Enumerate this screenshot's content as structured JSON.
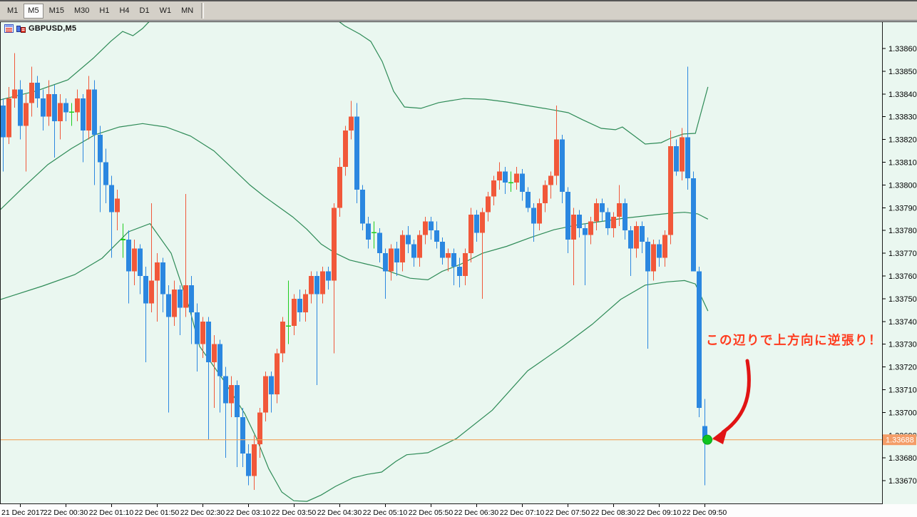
{
  "toolbar": {
    "buttons": [
      {
        "label": "M1",
        "active": false
      },
      {
        "label": "M5",
        "active": true
      },
      {
        "label": "M15",
        "active": false
      },
      {
        "label": "M30",
        "active": false
      },
      {
        "label": "H1",
        "active": false
      },
      {
        "label": "H4",
        "active": false
      },
      {
        "label": "D1",
        "active": false
      },
      {
        "label": "W1",
        "active": false
      },
      {
        "label": "MN",
        "active": false
      }
    ]
  },
  "chart": {
    "symbol_label": "GBPUSD,M5",
    "icons": [
      "chart-list-icon",
      "bar-chart-icon"
    ],
    "colors": {
      "background": "#eaf7f0",
      "toolbar_bg": "#d4d0c8",
      "frame": "#1c1c1c",
      "bull": "#f1583a",
      "bear": "#2b87e0",
      "doji": "#1ecc1e",
      "band": "#2e8b57",
      "hline": "#f0a35c",
      "tag_bg": "#f49d68",
      "tag_text": "#ffffff",
      "axis_text": "#000000",
      "bottom_strip": "#fdfdfd"
    },
    "price_axis": {
      "labels": [
        "1.33860",
        "1.33850",
        "1.33840",
        "1.33830",
        "1.33820",
        "1.33810",
        "1.33800",
        "1.33790",
        "1.33780",
        "1.33770",
        "1.33760",
        "1.33750",
        "1.33740",
        "1.33730",
        "1.33720",
        "1.33710",
        "1.33700",
        "1.33690",
        "1.33680",
        "1.33670"
      ],
      "top_unit": 860,
      "unit_step": 10,
      "current_price_label": "1.33688",
      "current_price_unit": 688
    },
    "time_axis": {
      "labels": [
        "21 Dec 2017",
        "22 Dec 00:30",
        "22 Dec 01:10",
        "22 Dec 01:50",
        "22 Dec 02:30",
        "22 Dec 03:10",
        "22 Dec 03:50",
        "22 Dec 04:30",
        "22 Dec 05:10",
        "22 Dec 05:50",
        "22 Dec 06:30",
        "22 Dec 07:10",
        "22 Dec 07:50",
        "22 Dec 08:30",
        "22 Dec 09:10",
        "22 Dec 09:50"
      ],
      "first_candle_index": 3,
      "candle_index_step": 8
    },
    "chart_data": {
      "type": "candlestick",
      "symbol": "GBPUSD",
      "timeframe": "M5",
      "price_base": 1.33,
      "unit": 1e-05,
      "note": "candles are [open,high,low,close] in 0.00001 units above 1.33; doji when open==close",
      "candles": [
        [
          835,
          838,
          806,
          821
        ],
        [
          821,
          843,
          818,
          838
        ],
        [
          838,
          858,
          834,
          842
        ],
        [
          842,
          846,
          820,
          826
        ],
        [
          826,
          840,
          806,
          836
        ],
        [
          836,
          852,
          830,
          845
        ],
        [
          845,
          848,
          834,
          838
        ],
        [
          838,
          842,
          824,
          830
        ],
        [
          830,
          846,
          826,
          840
        ],
        [
          840,
          844,
          812,
          828
        ],
        [
          828,
          840,
          820,
          836
        ],
        [
          836,
          838,
          828,
          832
        ],
        [
          832,
          836,
          826,
          832
        ],
        [
          832,
          842,
          828,
          838
        ],
        [
          838,
          840,
          810,
          824
        ],
        [
          824,
          848,
          820,
          842
        ],
        [
          842,
          846,
          800,
          822
        ],
        [
          822,
          826,
          788,
          810
        ],
        [
          810,
          816,
          792,
          800
        ],
        [
          800,
          804,
          768,
          788
        ],
        [
          788,
          798,
          780,
          794
        ],
        [
          776,
          783,
          768,
          776
        ],
        [
          776,
          780,
          748,
          762
        ],
        [
          762,
          776,
          756,
          772
        ],
        [
          772,
          774,
          752,
          760
        ],
        [
          760,
          764,
          722,
          748
        ],
        [
          748,
          792,
          744,
          758
        ],
        [
          758,
          770,
          740,
          766
        ],
        [
          766,
          768,
          744,
          752
        ],
        [
          752,
          756,
          700,
          742
        ],
        [
          742,
          758,
          738,
          754
        ],
        [
          754,
          756,
          734,
          746
        ],
        [
          746,
          796,
          742,
          756
        ],
        [
          756,
          760,
          730,
          744
        ],
        [
          744,
          748,
          718,
          730
        ],
        [
          730,
          742,
          724,
          740
        ],
        [
          740,
          742,
          688,
          722
        ],
        [
          722,
          734,
          702,
          730
        ],
        [
          730,
          732,
          700,
          716
        ],
        [
          716,
          720,
          680,
          704
        ],
        [
          704,
          716,
          698,
          712
        ],
        [
          712,
          714,
          676,
          698
        ],
        [
          698,
          702,
          676,
          682
        ],
        [
          682,
          686,
          668,
          672
        ],
        [
          672,
          690,
          666,
          686
        ],
        [
          686,
          702,
          680,
          700
        ],
        [
          700,
          718,
          696,
          716
        ],
        [
          716,
          718,
          700,
          708
        ],
        [
          708,
          728,
          704,
          726
        ],
        [
          726,
          742,
          722,
          740
        ],
        [
          738,
          758,
          730,
          738
        ],
        [
          738,
          752,
          734,
          750
        ],
        [
          750,
          754,
          740,
          744
        ],
        [
          744,
          754,
          740,
          752
        ],
        [
          752,
          762,
          748,
          760
        ],
        [
          760,
          762,
          712,
          752
        ],
        [
          752,
          764,
          748,
          762
        ],
        [
          762,
          764,
          754,
          758
        ],
        [
          758,
          792,
          726,
          790
        ],
        [
          790,
          812,
          786,
          808
        ],
        [
          808,
          826,
          804,
          824
        ],
        [
          824,
          837,
          820,
          830
        ],
        [
          830,
          836,
          792,
          798
        ],
        [
          798,
          800,
          780,
          783
        ],
        [
          783,
          786,
          772,
          776
        ],
        [
          779,
          784,
          772,
          779
        ],
        [
          779,
          781,
          766,
          770
        ],
        [
          770,
          772,
          750,
          762
        ],
        [
          762,
          774,
          758,
          772
        ],
        [
          772,
          775,
          760,
          766
        ],
        [
          766,
          780,
          762,
          778
        ],
        [
          778,
          782,
          770,
          774
        ],
        [
          774,
          776,
          764,
          768
        ],
        [
          768,
          780,
          764,
          778
        ],
        [
          778,
          786,
          774,
          784
        ],
        [
          784,
          786,
          776,
          780
        ],
        [
          780,
          784,
          772,
          775
        ],
        [
          775,
          777,
          765,
          768
        ],
        [
          768,
          772,
          762,
          770
        ],
        [
          770,
          772,
          756,
          764
        ],
        [
          764,
          768,
          755,
          760
        ],
        [
          760,
          772,
          756,
          770
        ],
        [
          770,
          790,
          766,
          787
        ],
        [
          787,
          789,
          775,
          779
        ],
        [
          779,
          790,
          750,
          788
        ],
        [
          788,
          797,
          784,
          795
        ],
        [
          795,
          804,
          791,
          802
        ],
        [
          802,
          810,
          798,
          806
        ],
        [
          806,
          808,
          796,
          801
        ],
        [
          801,
          806,
          797,
          801
        ],
        [
          801,
          808,
          798,
          805
        ],
        [
          805,
          807,
          793,
          797
        ],
        [
          797,
          799,
          788,
          790
        ],
        [
          790,
          792,
          775,
          783
        ],
        [
          783,
          794,
          780,
          792
        ],
        [
          792,
          802,
          788,
          800
        ],
        [
          800,
          806,
          794,
          804
        ],
        [
          804,
          835,
          800,
          820
        ],
        [
          820,
          822,
          792,
          797
        ],
        [
          797,
          799,
          770,
          776
        ],
        [
          776,
          790,
          756,
          787
        ],
        [
          787,
          789,
          777,
          781
        ],
        [
          781,
          783,
          756,
          778
        ],
        [
          778,
          786,
          774,
          784
        ],
        [
          784,
          794,
          780,
          792
        ],
        [
          792,
          794,
          784,
          788
        ],
        [
          788,
          790,
          778,
          781
        ],
        [
          781,
          788,
          777,
          786
        ],
        [
          786,
          800,
          782,
          792
        ],
        [
          792,
          794,
          776,
          780
        ],
        [
          780,
          782,
          760,
          772
        ],
        [
          772,
          784,
          768,
          782
        ],
        [
          782,
          784,
          770,
          775
        ],
        [
          775,
          777,
          728,
          762
        ],
        [
          762,
          776,
          758,
          774
        ],
        [
          774,
          776,
          764,
          768
        ],
        [
          768,
          780,
          764,
          778
        ],
        [
          778,
          824,
          774,
          817
        ],
        [
          817,
          820,
          804,
          806
        ],
        [
          806,
          825,
          802,
          821
        ],
        [
          821,
          852,
          798,
          803
        ],
        [
          803,
          806,
          762,
          762
        ],
        [
          762,
          764,
          698,
          702
        ],
        [
          694,
          706,
          668,
          688
        ]
      ],
      "bollinger": {
        "upper": [
          [
            -0.5,
            837.4
          ],
          [
            5.8,
            841.3
          ],
          [
            11.4,
            846.2
          ],
          [
            15.8,
            855.6
          ],
          [
            18.9,
            863.1
          ],
          [
            21,
            867.5
          ],
          [
            22.8,
            865.6
          ],
          [
            24.5,
            868.8
          ],
          [
            26.4,
            873.8
          ],
          [
            31.4,
            878.2
          ],
          [
            43.3,
            879.4
          ],
          [
            53.3,
            877.6
          ],
          [
            57.6,
            874.4
          ],
          [
            59.9,
            870
          ],
          [
            62.6,
            866.3
          ],
          [
            64.5,
            863.1
          ],
          [
            66.5,
            854.3
          ],
          [
            68.5,
            841.2
          ],
          [
            70.4,
            834.3
          ],
          [
            73.3,
            833.7
          ],
          [
            76.4,
            836.2
          ],
          [
            80.8,
            838
          ],
          [
            84.5,
            837.7
          ],
          [
            88.3,
            836.5
          ],
          [
            92,
            834.9
          ],
          [
            95.8,
            833.3
          ],
          [
            99.1,
            831.8
          ],
          [
            101.6,
            828.7
          ],
          [
            104.9,
            824.9
          ],
          [
            107.4,
            824.3
          ],
          [
            108.6,
            825.5
          ],
          [
            111.1,
            820.8
          ],
          [
            112.6,
            818
          ],
          [
            115.4,
            818.6
          ],
          [
            117,
            820.5
          ],
          [
            119.3,
            822.4
          ],
          [
            121.4,
            822.7
          ],
          [
            123.6,
            843.1
          ]
        ],
        "middle": [
          [
            -0.5,
            789
          ],
          [
            3.6,
            799
          ],
          [
            7.9,
            809
          ],
          [
            12,
            816
          ],
          [
            16.1,
            822
          ],
          [
            20.4,
            825.5
          ],
          [
            24.5,
            827
          ],
          [
            28.6,
            825.5
          ],
          [
            32.9,
            821.5
          ],
          [
            37,
            815
          ],
          [
            40.8,
            806
          ],
          [
            43.3,
            800
          ],
          [
            45.8,
            795
          ],
          [
            48.3,
            790.5
          ],
          [
            50.8,
            786
          ],
          [
            53.3,
            780.5
          ],
          [
            55.8,
            774
          ],
          [
            58.3,
            770
          ],
          [
            60.8,
            767
          ],
          [
            63.3,
            765.5
          ],
          [
            65.8,
            764
          ],
          [
            68.3,
            761.5
          ],
          [
            71.4,
            759
          ],
          [
            74.5,
            758.3
          ],
          [
            77,
            762
          ],
          [
            80.1,
            765
          ],
          [
            84.1,
            770
          ],
          [
            88.3,
            773
          ],
          [
            92.6,
            777
          ],
          [
            96.6,
            780.3
          ],
          [
            100.8,
            782.5
          ],
          [
            105.1,
            784
          ],
          [
            108.9,
            785.4
          ],
          [
            113.3,
            786.6
          ],
          [
            117,
            787.6
          ],
          [
            119.5,
            788
          ],
          [
            121.8,
            787.3
          ],
          [
            123.6,
            785
          ]
        ],
        "lower": [
          [
            -0.5,
            749.6
          ],
          [
            7,
            755.6
          ],
          [
            12.6,
            760.6
          ],
          [
            17.4,
            767.8
          ],
          [
            22,
            779.4
          ],
          [
            25.8,
            783
          ],
          [
            29.5,
            770
          ],
          [
            32.6,
            746.7
          ],
          [
            34.5,
            729
          ],
          [
            38.6,
            714.5
          ],
          [
            42.4,
            699.5
          ],
          [
            44.5,
            688.5
          ],
          [
            46.6,
            675.3
          ],
          [
            48.9,
            665
          ],
          [
            51,
            661.2
          ],
          [
            53.3,
            660.9
          ],
          [
            55.8,
            663.7
          ],
          [
            58.3,
            667.5
          ],
          [
            61.4,
            671.3
          ],
          [
            63.9,
            672.8
          ],
          [
            66.4,
            673.8
          ],
          [
            68.9,
            678.5
          ],
          [
            70.8,
            681.4
          ],
          [
            74.5,
            682.3
          ],
          [
            79.5,
            688.5
          ],
          [
            85.8,
            701
          ],
          [
            92,
            718.3
          ],
          [
            98.3,
            729.3
          ],
          [
            103.3,
            738.7
          ],
          [
            108.3,
            749.7
          ],
          [
            112.6,
            756
          ],
          [
            116.4,
            757.4
          ],
          [
            119.5,
            758
          ],
          [
            121.4,
            756.5
          ],
          [
            123.6,
            744.6
          ]
        ]
      }
    }
  },
  "hline": {
    "price_unit": 688,
    "price_label": "1.33688"
  },
  "annotation": {
    "text": "この辺りで上方向に逆張り！",
    "color": "#ff3b1e",
    "arrow_color": "#e11414",
    "dot_color": "#0fc41f",
    "dot_stroke": "#0aa317",
    "entry_candle_index": 123,
    "entry_price_unit": 688
  }
}
